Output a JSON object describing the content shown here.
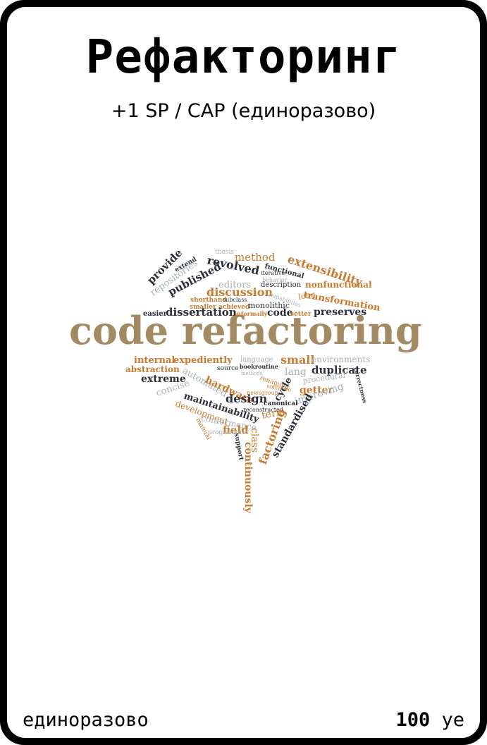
{
  "card": {
    "title": "Рефакторинг",
    "subtitle": "+1 SP / CAP (единоразово)",
    "footer_left": "единоразово",
    "cost_value": "100",
    "cost_unit": "уе"
  },
  "wordcloud": {
    "colors": {
      "brown": "#a38a63",
      "orange": "#c97a2e",
      "dark": "#2c2f3a",
      "gray": "#a7b1b4"
    },
    "words": [
      {
        "text": "code refactoring",
        "style": "main",
        "color": "brown"
      },
      {
        "text": "provide",
        "style": "b",
        "color": "dark"
      },
      {
        "text": "repositories",
        "style": "m",
        "color": "gray"
      },
      {
        "text": "extend",
        "style": "s",
        "color": "dark"
      },
      {
        "text": "thesis",
        "style": "s",
        "color": "gray"
      },
      {
        "text": "method",
        "style": "m",
        "color": "orange"
      },
      {
        "text": "revolved",
        "style": "b",
        "color": "dark"
      },
      {
        "text": "published",
        "style": "b",
        "color": "dark"
      },
      {
        "text": "editors",
        "style": "m",
        "color": "gray"
      },
      {
        "text": "functional",
        "style": "s",
        "color": "dark"
      },
      {
        "text": "iterative",
        "style": "s",
        "color": "dark"
      },
      {
        "text": "behavior",
        "style": "s",
        "color": "gray"
      },
      {
        "text": "extensibility",
        "style": "b",
        "color": "orange"
      },
      {
        "text": "description",
        "style": "s",
        "color": "dark"
      },
      {
        "text": "nonfunctional",
        "style": "m",
        "color": "orange"
      },
      {
        "text": "transformation",
        "style": "m",
        "color": "orange"
      },
      {
        "text": "discussion",
        "style": "b",
        "color": "orange"
      },
      {
        "text": "capabilities",
        "style": "s",
        "color": "gray"
      },
      {
        "text": "long",
        "style": "m",
        "color": "orange"
      },
      {
        "text": "shorthand",
        "style": "s",
        "color": "orange"
      },
      {
        "text": "subclass",
        "style": "s",
        "color": "dark"
      },
      {
        "text": "smaller",
        "style": "s",
        "color": "orange"
      },
      {
        "text": "achieved",
        "style": "s",
        "color": "orange"
      },
      {
        "text": "monolithic",
        "style": "s",
        "color": "dark"
      },
      {
        "text": "easier",
        "style": "s",
        "color": "dark"
      },
      {
        "text": "dissertation",
        "style": "b",
        "color": "dark"
      },
      {
        "text": "informally",
        "style": "s",
        "color": "orange"
      },
      {
        "text": "code",
        "style": "m",
        "color": "dark"
      },
      {
        "text": "setter",
        "style": "s",
        "color": "orange"
      },
      {
        "text": "preserves",
        "style": "m",
        "color": "dark"
      },
      {
        "text": "internal",
        "style": "m",
        "color": "orange"
      },
      {
        "text": "expediently",
        "style": "m",
        "color": "orange"
      },
      {
        "text": "language",
        "style": "s",
        "color": "gray"
      },
      {
        "text": "small",
        "style": "b",
        "color": "orange"
      },
      {
        "text": "environments",
        "style": "s",
        "color": "gray"
      },
      {
        "text": "abstraction",
        "style": "m",
        "color": "orange"
      },
      {
        "text": "source",
        "style": "s",
        "color": "dark"
      },
      {
        "text": "bookroutine",
        "style": "s",
        "color": "dark"
      },
      {
        "text": "methods",
        "style": "s",
        "color": "gray"
      },
      {
        "text": "lang",
        "style": "m",
        "color": "gray"
      },
      {
        "text": "duplicate",
        "style": "b",
        "color": "dark"
      },
      {
        "text": "extreme",
        "style": "m",
        "color": "dark"
      },
      {
        "text": "automated",
        "style": "m",
        "color": "gray"
      },
      {
        "text": "hardware",
        "style": "m",
        "color": "orange"
      },
      {
        "text": "renaming",
        "style": "s",
        "color": "orange"
      },
      {
        "text": "software",
        "style": "s",
        "color": "orange"
      },
      {
        "text": "procedural",
        "style": "s",
        "color": "gray"
      },
      {
        "text": "correctness",
        "style": "s",
        "color": "dark"
      },
      {
        "text": "concise",
        "style": "m",
        "color": "gray"
      },
      {
        "text": "getter",
        "style": "m",
        "color": "orange"
      },
      {
        "text": "cycle",
        "style": "m",
        "color": "dark"
      },
      {
        "text": "improving",
        "style": "m",
        "color": "gray"
      },
      {
        "text": "design",
        "style": "b",
        "color": "dark"
      },
      {
        "text": "newsgroup",
        "style": "s",
        "color": "orange"
      },
      {
        "text": "maintainability",
        "style": "m",
        "color": "dark"
      },
      {
        "text": "canonical",
        "style": "s",
        "color": "dark"
      },
      {
        "text": "development",
        "style": "m",
        "color": "orange"
      },
      {
        "text": "conformance",
        "style": "m",
        "color": "gray"
      },
      {
        "text": "term",
        "style": "m",
        "color": "orange"
      },
      {
        "text": "reconstructed",
        "style": "s",
        "color": "dark"
      },
      {
        "text": "field",
        "style": "b",
        "color": "orange"
      },
      {
        "text": "manual",
        "style": "s",
        "color": "orange"
      },
      {
        "text": "programmer",
        "style": "s",
        "color": "gray"
      },
      {
        "text": "support",
        "style": "s",
        "color": "dark"
      },
      {
        "text": "class",
        "style": "m",
        "color": "orange"
      },
      {
        "text": "continuously",
        "style": "m",
        "color": "orange"
      },
      {
        "text": "factoring",
        "style": "b",
        "color": "orange"
      },
      {
        "text": "standardised",
        "style": "m",
        "color": "dark"
      }
    ]
  }
}
